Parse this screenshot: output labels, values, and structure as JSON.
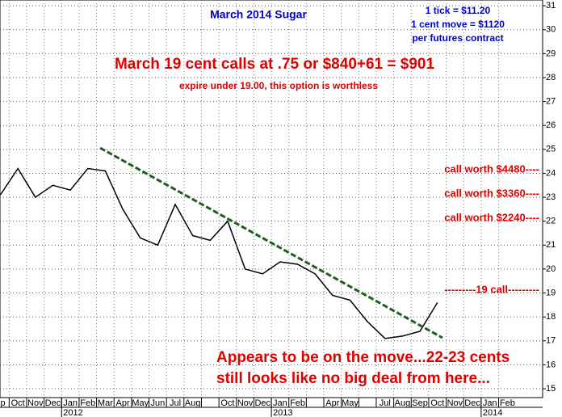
{
  "chart_data": {
    "type": "line",
    "title": "March 2014 Sugar",
    "annotations": [
      "1 tick = $11.20",
      "1 cent move = $1120",
      "per futures contract",
      "March 19 cent calls at .75 or $840+61 = $901",
      "expire under 19.00, this option is worthless",
      "call worth $4480----",
      "call worth $3360----",
      "call worth $2240----",
      "---------19 call---------",
      "Appears to be on the move...22-23 cents",
      "still looks like no big deal from here..."
    ],
    "categories": [
      "ep",
      "Oct",
      "Nov",
      "Dec",
      "Jan",
      "Feb",
      "Mar",
      "Apr",
      "May",
      "Jun",
      "Jul",
      "Aug",
      null,
      "Oct",
      "Nov",
      "Dec",
      "Jan",
      "Feb",
      null,
      "Apr",
      "May",
      null,
      "Jul",
      "Aug",
      "Sep",
      "Oct",
      "Nov",
      "Dec",
      "Jan",
      "Feb"
    ],
    "years": [
      {
        "index": 4,
        "label": "2012"
      },
      {
        "index": 16,
        "label": "2013"
      },
      {
        "index": 28,
        "label": "2014"
      }
    ],
    "series": [
      {
        "name": "March 2014 Sugar",
        "color": "#000000",
        "values": [
          23.1,
          24.2,
          23.0,
          23.5,
          23.3,
          24.2,
          24.1,
          22.5,
          21.3,
          21.0,
          22.7,
          21.4,
          21.2,
          22.0,
          20.0,
          19.8,
          20.3,
          20.2,
          19.8,
          18.9,
          18.7,
          17.8,
          17.1,
          17.2,
          17.4,
          18.6,
          null,
          null,
          null,
          null
        ]
      }
    ],
    "ylim": [
      14.63,
      31.24
    ],
    "yticks": [
      15,
      16,
      17,
      18,
      19,
      20,
      21,
      22,
      23,
      24,
      25,
      26,
      27,
      28,
      29,
      30,
      31
    ],
    "grid": true
  }
}
